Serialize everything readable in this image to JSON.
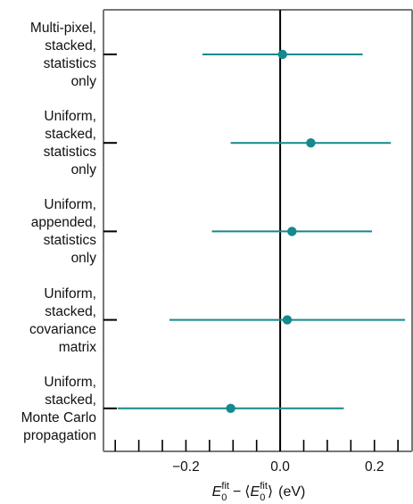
{
  "chart_data": {
    "type": "scatter",
    "subtype": "forest-plot with horizontal error bars",
    "categories": [
      "Multi-pixel,\nstacked,\nstatistics\nonly",
      "Uniform,\nstacked,\nstatistics\nonly",
      "Uniform,\nappended,\nstatistics\nonly",
      "Uniform,\nstacked,\ncovariance\nmatrix",
      "Uniform,\nstacked,\nMonte Carlo\npropagation"
    ],
    "series": [
      {
        "values": [
          0.005,
          0.065,
          0.025,
          0.015,
          -0.105
        ],
        "err_low": [
          -0.165,
          -0.105,
          -0.145,
          -0.235,
          -0.345
        ],
        "err_high": [
          0.175,
          0.235,
          0.195,
          0.265,
          0.135
        ],
        "color": "#15898b"
      }
    ],
    "xlim": [
      -0.375,
      0.28
    ],
    "xticks_major": [
      -0.2,
      0.0,
      0.2
    ],
    "xtick_labels": [
      "−0.2",
      "0.0",
      "0.2"
    ],
    "xticks_minor": [
      -0.35,
      -0.3,
      -0.25,
      -0.15,
      -0.1,
      -0.05,
      0.05,
      0.1,
      0.15,
      0.25
    ],
    "xlabel": {
      "E": "E",
      "sub": "0",
      "sup": "fit",
      "minus": "−",
      "langle": "⟨",
      "rangle": "⟩",
      "unit": "(eV)"
    },
    "reference_line_x": 0.0,
    "grid": false
  }
}
